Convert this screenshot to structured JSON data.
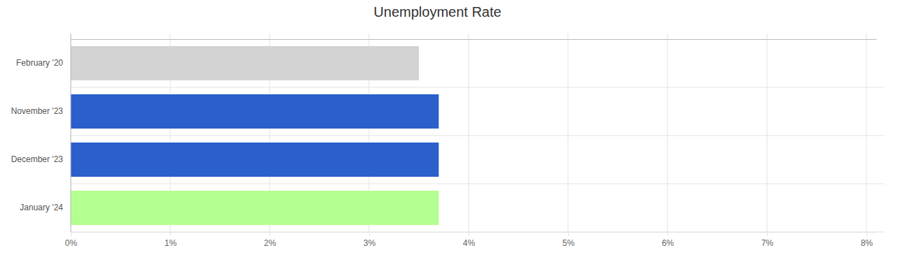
{
  "chart_data": {
    "type": "bar",
    "title": "Unemployment Rate",
    "orientation": "horizontal",
    "categories": [
      "February '20",
      "November '23",
      "December '23",
      "January '24"
    ],
    "values": [
      3.5,
      3.7,
      3.7,
      3.7
    ],
    "colors": [
      "#d3d3d3",
      "#2a5fcc",
      "#2a5fcc",
      "#b3ff8f"
    ],
    "xlim": [
      0,
      8.1
    ],
    "xticks": [
      {
        "value": 0,
        "label": "0%"
      },
      {
        "value": 1,
        "label": "1%"
      },
      {
        "value": 2,
        "label": "2%"
      },
      {
        "value": 3,
        "label": "3%"
      },
      {
        "value": 4,
        "label": "4%"
      },
      {
        "value": 5,
        "label": "5%"
      },
      {
        "value": 6,
        "label": "6%"
      },
      {
        "value": 7,
        "label": "7%"
      },
      {
        "value": 8,
        "label": "8%"
      }
    ],
    "grid": true
  }
}
